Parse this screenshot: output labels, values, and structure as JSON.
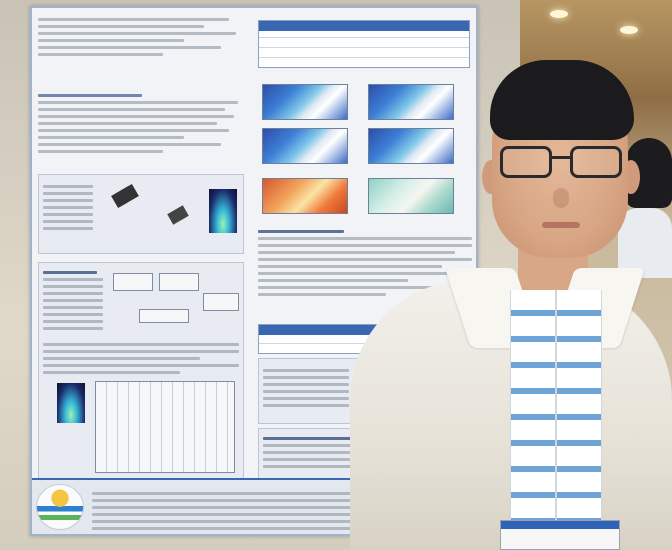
{
  "scene": {
    "description_tags": [
      "poster-board",
      "presenter",
      "lanyard",
      "scientific-poster"
    ]
  },
  "poster": {
    "visible_sections": [
      "",
      "",
      ""
    ]
  }
}
